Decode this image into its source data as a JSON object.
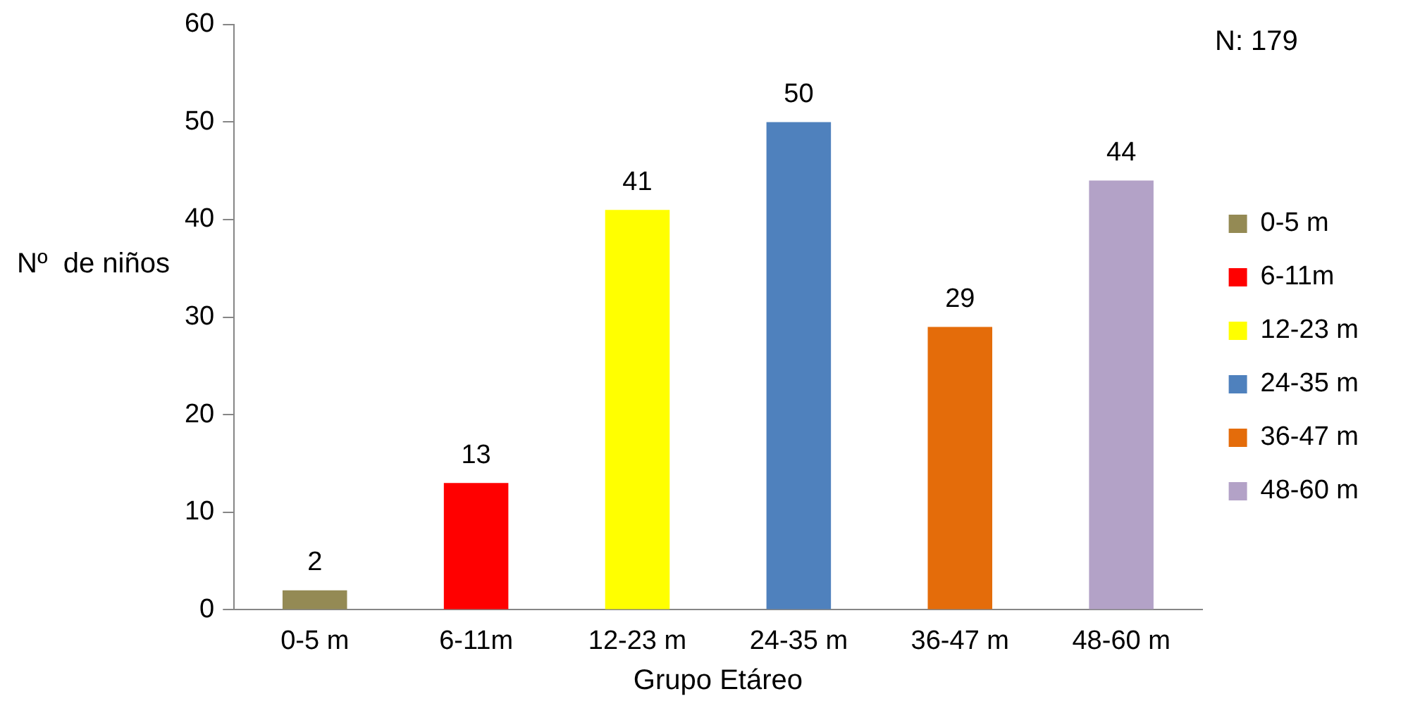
{
  "chart_data": {
    "type": "bar",
    "xlabel": "Grupo Etáreo",
    "ylabel": "Nº  de niños",
    "annotations": [
      "N: 179"
    ],
    "categories": [
      "0-5 m",
      "6-11m",
      "12-23 m",
      "24-35 m",
      "36-47 m",
      "48-60 m"
    ],
    "series": [
      {
        "name": "0-5 m",
        "color": "#948a54",
        "values": [
          2,
          null,
          null,
          null,
          null,
          null
        ]
      },
      {
        "name": "6-11m",
        "color": "#ff0000",
        "values": [
          null,
          13,
          null,
          null,
          null,
          null
        ]
      },
      {
        "name": "12-23 m",
        "color": "#ffff00",
        "values": [
          null,
          null,
          41,
          null,
          null,
          null
        ]
      },
      {
        "name": "24-35 m",
        "color": "#4f81bd",
        "values": [
          null,
          null,
          null,
          50,
          null,
          null
        ]
      },
      {
        "name": "36-47 m",
        "color": "#e46c0a",
        "values": [
          null,
          null,
          null,
          null,
          29,
          null
        ]
      },
      {
        "name": "48-60 m",
        "color": "#b3a2c7",
        "values": [
          null,
          null,
          null,
          null,
          null,
          44
        ]
      }
    ],
    "ylim": [
      0,
      60
    ],
    "yticks": [
      0,
      10,
      20,
      30,
      40,
      50,
      60
    ],
    "grid": false,
    "legend": "right",
    "data_labels": true
  }
}
